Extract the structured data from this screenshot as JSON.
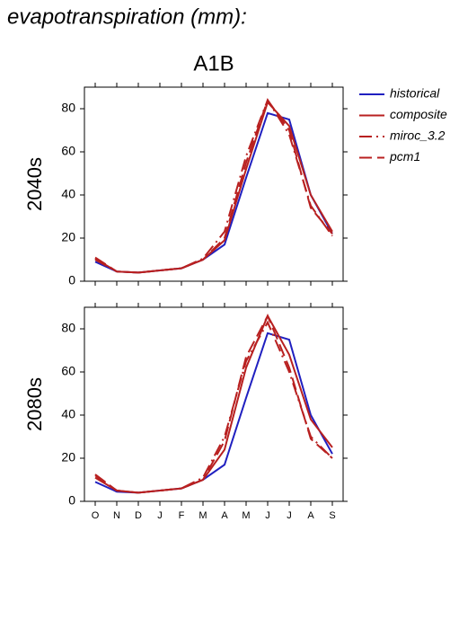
{
  "page_title": "evapotranspiration (mm):",
  "chart_data": [
    {
      "type": "line",
      "title": "A1B",
      "ylabel": "2040s",
      "categories": [
        "O",
        "N",
        "D",
        "J",
        "F",
        "M",
        "A",
        "M",
        "J",
        "J",
        "A",
        "S"
      ],
      "ylim": [
        0,
        90
      ],
      "yticks": [
        0,
        20,
        40,
        60,
        80
      ],
      "series": [
        {
          "name": "historical",
          "color": "#2020c0",
          "dash": "solid",
          "values": [
            9,
            4.5,
            4,
            5,
            6,
            10,
            17,
            48,
            78,
            75,
            40,
            22
          ]
        },
        {
          "name": "composite",
          "color": "#b82020",
          "dash": "solid",
          "values": [
            10.5,
            4.5,
            4,
            5,
            6,
            10,
            19,
            52,
            83,
            72,
            40,
            23
          ]
        },
        {
          "name": "miroc_3.2",
          "color": "#b82020",
          "dash": "dashdot",
          "values": [
            10,
            4.5,
            4,
            5,
            6,
            10.5,
            23,
            58,
            84,
            68,
            35,
            21
          ]
        },
        {
          "name": "pcm1",
          "color": "#b82020",
          "dash": "dash",
          "values": [
            11,
            4.5,
            4,
            5,
            6,
            10,
            20,
            55,
            84,
            70,
            34,
            22
          ]
        }
      ]
    },
    {
      "type": "line",
      "ylabel": "2080s",
      "categories": [
        "O",
        "N",
        "D",
        "J",
        "F",
        "M",
        "A",
        "M",
        "J",
        "J",
        "A",
        "S"
      ],
      "ylim": [
        0,
        90
      ],
      "yticks": [
        0,
        20,
        40,
        60,
        80
      ],
      "series": [
        {
          "name": "historical",
          "color": "#2020c0",
          "dash": "solid",
          "values": [
            9,
            4.5,
            4,
            5,
            6,
            10,
            17,
            48,
            78,
            75,
            40,
            22
          ]
        },
        {
          "name": "composite",
          "color": "#b82020",
          "dash": "solid",
          "values": [
            11,
            5,
            4,
            5,
            6,
            10,
            24,
            62,
            86,
            68,
            38,
            25
          ]
        },
        {
          "name": "miroc_3.2",
          "color": "#b82020",
          "dash": "dashdot",
          "values": [
            12,
            5,
            4,
            5,
            6,
            11,
            30,
            65,
            83,
            60,
            30,
            20
          ]
        },
        {
          "name": "pcm1",
          "color": "#b82020",
          "dash": "dash",
          "values": [
            12.5,
            5,
            4,
            5,
            6,
            10,
            28,
            67,
            86,
            62,
            29,
            20
          ]
        }
      ]
    }
  ]
}
